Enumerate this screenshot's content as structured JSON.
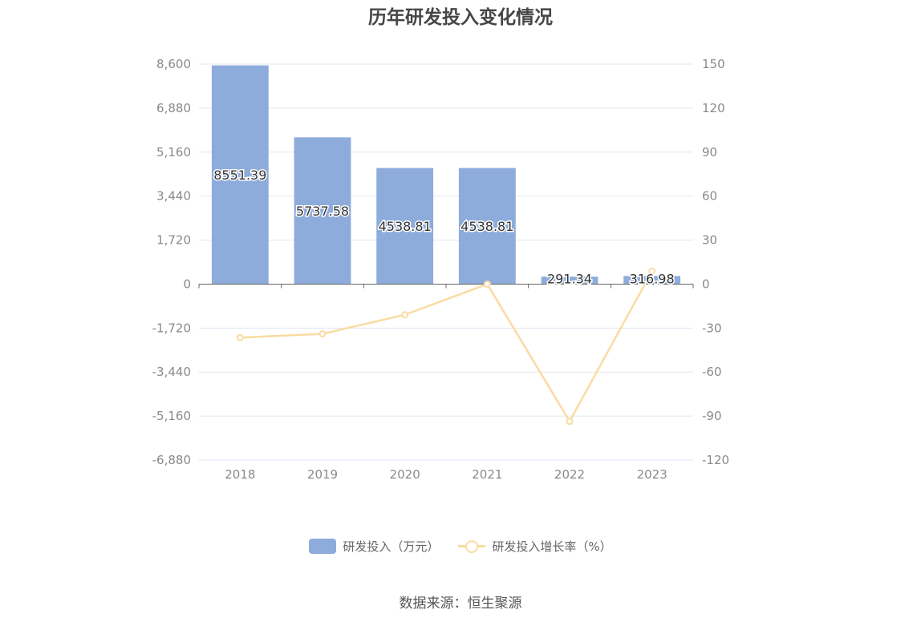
{
  "title": "历年研发投入变化情况",
  "source": "数据来源：恒生聚源",
  "legend": {
    "bar_label": "研发投入（万元）",
    "line_label": "研发投入增长率（%）"
  },
  "colors": {
    "bar": "#8eacdb",
    "line": "#f9dca3",
    "grid": "#e3e6f3",
    "axis_text": "#8a8a8a"
  },
  "chart_data": {
    "type": "bar",
    "categories": [
      "2018",
      "2019",
      "2020",
      "2021",
      "2022",
      "2023"
    ],
    "series": [
      {
        "name": "研发投入（万元）",
        "type": "bar",
        "axis": "left",
        "values": [
          8551.39,
          5737.58,
          4538.81,
          4538.81,
          291.34,
          316.98
        ],
        "labels": [
          "8551.39",
          "5737.58",
          "4538.81",
          "4538.81",
          "291.34",
          "316.98"
        ]
      },
      {
        "name": "研发投入增长率（%）",
        "type": "line",
        "axis": "right",
        "values": [
          -36.5,
          -33.9,
          -20.9,
          0.0,
          -93.6,
          8.8
        ]
      }
    ],
    "y_left": {
      "min": -6880,
      "max": 8600,
      "ticks": [
        8600,
        6880,
        5160,
        3440,
        1720,
        0,
        -1720,
        -3440,
        -5160,
        -6880
      ],
      "tick_labels": [
        "8,600",
        "6,880",
        "5,160",
        "3,440",
        "1,720",
        "0",
        "-1,720",
        "-3,440",
        "-5,160",
        "-6,880"
      ]
    },
    "y_right": {
      "min": -120,
      "max": 150,
      "ticks": [
        150,
        120,
        90,
        60,
        30,
        0,
        -30,
        -60,
        -90,
        -120
      ],
      "tick_labels": [
        "150",
        "120",
        "90",
        "60",
        "30",
        "0",
        "-30",
        "-60",
        "-90",
        "-120"
      ]
    },
    "grid": true,
    "legend_position": "bottom"
  }
}
